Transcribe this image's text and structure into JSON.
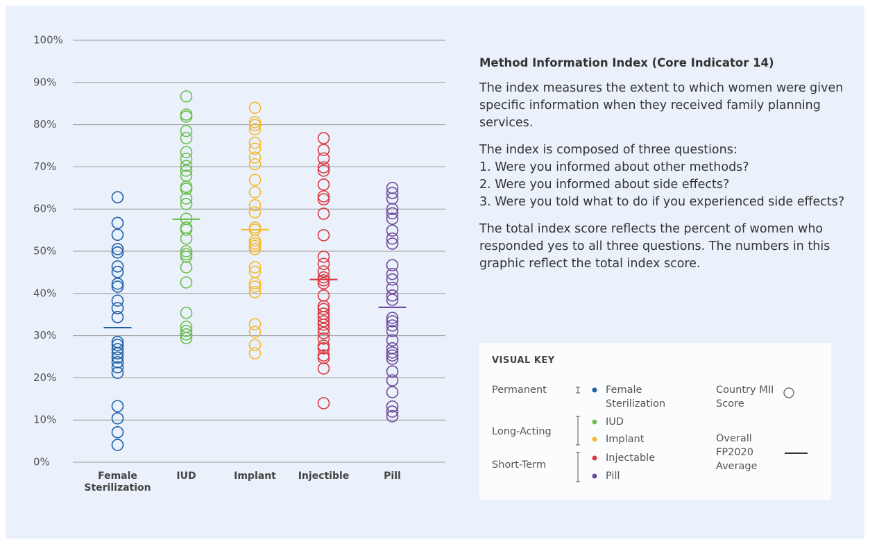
{
  "chart_data": {
    "type": "strip",
    "categories": [
      "Female Sterilization",
      "IUD",
      "Implant",
      "Injectible",
      "Pill"
    ],
    "ylim": [
      0,
      100
    ],
    "yticks": [
      {
        "value": 0,
        "label": "0%"
      },
      {
        "value": 10,
        "label": "10%"
      },
      {
        "value": 20,
        "label": "20%"
      },
      {
        "value": 30,
        "label": "30%"
      },
      {
        "value": 40,
        "label": "40%"
      },
      {
        "value": 50,
        "label": "50%"
      },
      {
        "value": 60,
        "label": "60%"
      },
      {
        "value": 70,
        "label": "70%"
      },
      {
        "value": 80,
        "label": "80%"
      },
      {
        "value": 90,
        "label": "90%"
      },
      {
        "value": 100,
        "label": "100%"
      }
    ],
    "grid": true,
    "series": [
      {
        "name": "Female Sterilization",
        "color": "#1f5fa8",
        "average": 31.9,
        "values": [
          62.8,
          56.7,
          53.9,
          50.5,
          49.7,
          46.4,
          45.1,
          42.3,
          41.6,
          38.3,
          36.5,
          34.4,
          28.5,
          27.8,
          26.8,
          25.8,
          24.8,
          23.7,
          22.5,
          21.2,
          13.3,
          10.4,
          7.1,
          4.1
        ]
      },
      {
        "name": "IUD",
        "color": "#6abf4b",
        "average": 57.6,
        "values": [
          86.7,
          82.4,
          81.9,
          78.5,
          76.8,
          73.5,
          71.9,
          70.2,
          69.1,
          67.9,
          65.3,
          64.8,
          62.5,
          61.2,
          57.7,
          55.6,
          55.1,
          53,
          50,
          49.3,
          48.7,
          46.2,
          42.6,
          35.4,
          32.1,
          31.1,
          30.3,
          29.4
        ]
      },
      {
        "name": "Implant",
        "color": "#f5b82e",
        "average": 55.1,
        "values": [
          84,
          80.6,
          79.9,
          78.9,
          75.7,
          74.3,
          72.2,
          70.6,
          66.9,
          64,
          60.9,
          59.2,
          55.6,
          55.1,
          52.5,
          51.8,
          51.2,
          50.5,
          46.2,
          45.1,
          42.4,
          41.6,
          40.3,
          32.7,
          30.9,
          27.8,
          25.8
        ]
      },
      {
        "name": "Injectable",
        "color": "#d9383f",
        "average": 43.3,
        "values": [
          76.8,
          74,
          72,
          69.9,
          69.1,
          65.8,
          63,
          62.3,
          58.9,
          53.8,
          48.7,
          47,
          45.2,
          43.8,
          43.1,
          42.4,
          39.5,
          37,
          36.3,
          35.2,
          34.4,
          33.4,
          32.6,
          31.6,
          30.6,
          29.3,
          27.6,
          27,
          25.3,
          24.7,
          22.2,
          14
        ]
      },
      {
        "name": "Pill",
        "color": "#6e4a9e",
        "average": 36.7,
        "values": [
          65,
          63.8,
          62.5,
          60,
          59,
          57.7,
          54.9,
          53,
          51.8,
          46.7,
          44.6,
          43.3,
          41.3,
          39.5,
          38.5,
          34.2,
          33.4,
          32.4,
          31.1,
          28.9,
          27,
          26,
          25.3,
          24.5,
          21.5,
          19.4,
          16.6,
          13.2,
          12,
          10.9
        ]
      }
    ]
  },
  "panel": {
    "title": "Method Information Index (Core Indicator 14)",
    "intro": "The index measures the extent to which women were given specific information when they received family planning services.",
    "list_intro": "The index is composed of three questions:",
    "items": [
      "1. Were you informed about other methods?",
      "2. Were you informed about side effects?",
      "3. Were you told what to do if you experienced side effects?"
    ],
    "closing": "The total index score reflects the percent of women who responded yes to all three questions. The numbers in this graphic reflect the total index score."
  },
  "key": {
    "title": "VISUAL KEY",
    "groups": [
      "Permanent",
      "Long-Acting",
      "Short-Term"
    ],
    "marker_label": "Country MII Score",
    "average_label": "Overall FP2020 Average"
  }
}
